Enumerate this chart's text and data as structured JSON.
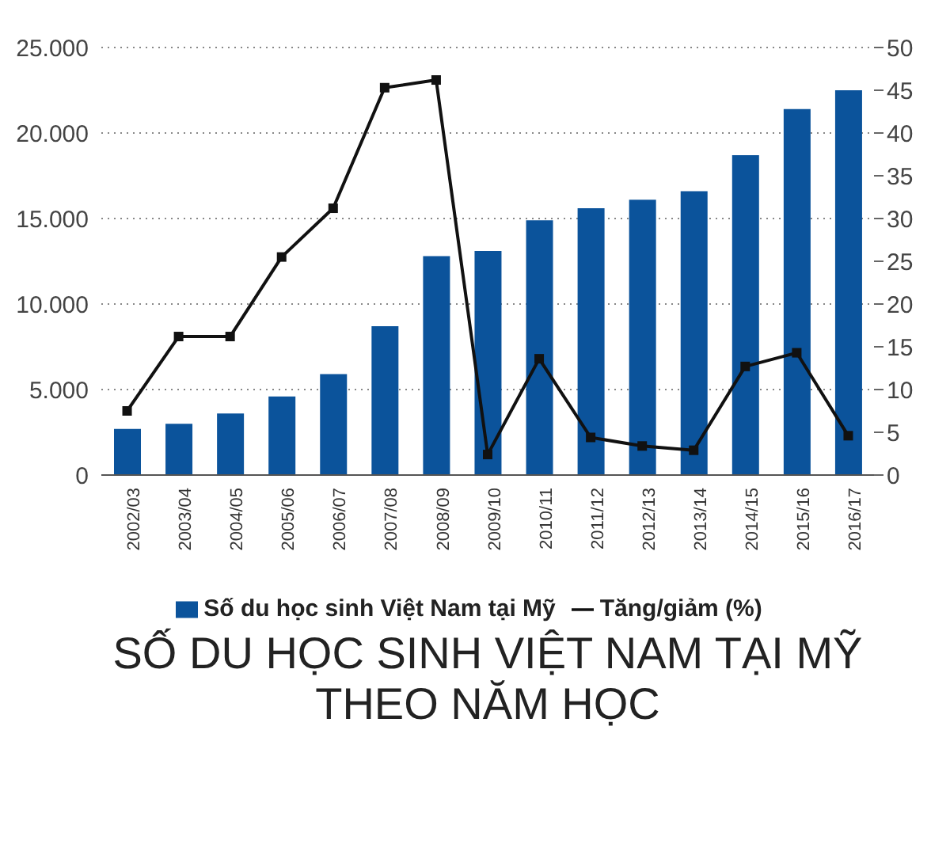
{
  "chart_data": {
    "type": "bar",
    "title": "SỐ DU HỌC SINH VIỆT NAM TẠI MỸ THEO NĂM HỌC",
    "categories": [
      "2002/03",
      "2003/04",
      "2004/05",
      "2005/06",
      "2006/07",
      "2007/08",
      "2008/09",
      "2009/10",
      "2010/11",
      "2011/12",
      "2012/13",
      "2013/14",
      "2014/15",
      "2015/16",
      "2016/17"
    ],
    "series": [
      {
        "name": "Số du học sinh Việt Nam tại Mỹ",
        "color": "#0b539b",
        "values": [
          2700,
          3000,
          3600,
          4600,
          5900,
          8700,
          12800,
          13100,
          14900,
          15600,
          16100,
          16600,
          18700,
          21400,
          22500
        ]
      },
      {
        "name": "Tăng/giảm (%)",
        "type": "line",
        "axis": "y2",
        "color": "#111111",
        "values": [
          7.5,
          16.2,
          16.2,
          25.5,
          31.2,
          45.3,
          46.2,
          2.4,
          13.6,
          4.4,
          3.4,
          2.9,
          12.7,
          14.3,
          4.6
        ]
      }
    ],
    "ylim": [
      0,
      25000
    ],
    "yticks": [
      {
        "value": 0,
        "label": "0"
      },
      {
        "value": 5000,
        "label": "5.000"
      },
      {
        "value": 10000,
        "label": "10.000"
      },
      {
        "value": 15000,
        "label": "15.000"
      },
      {
        "value": 20000,
        "label": "20.000"
      },
      {
        "value": 25000,
        "label": "25.000"
      }
    ],
    "y2lim": [
      0,
      50
    ],
    "y2ticks": [
      0,
      5,
      10,
      15,
      20,
      25,
      30,
      35,
      40,
      45,
      50
    ],
    "grid": "y",
    "legend": "bottom",
    "marker": "square",
    "line_style": "solid"
  }
}
